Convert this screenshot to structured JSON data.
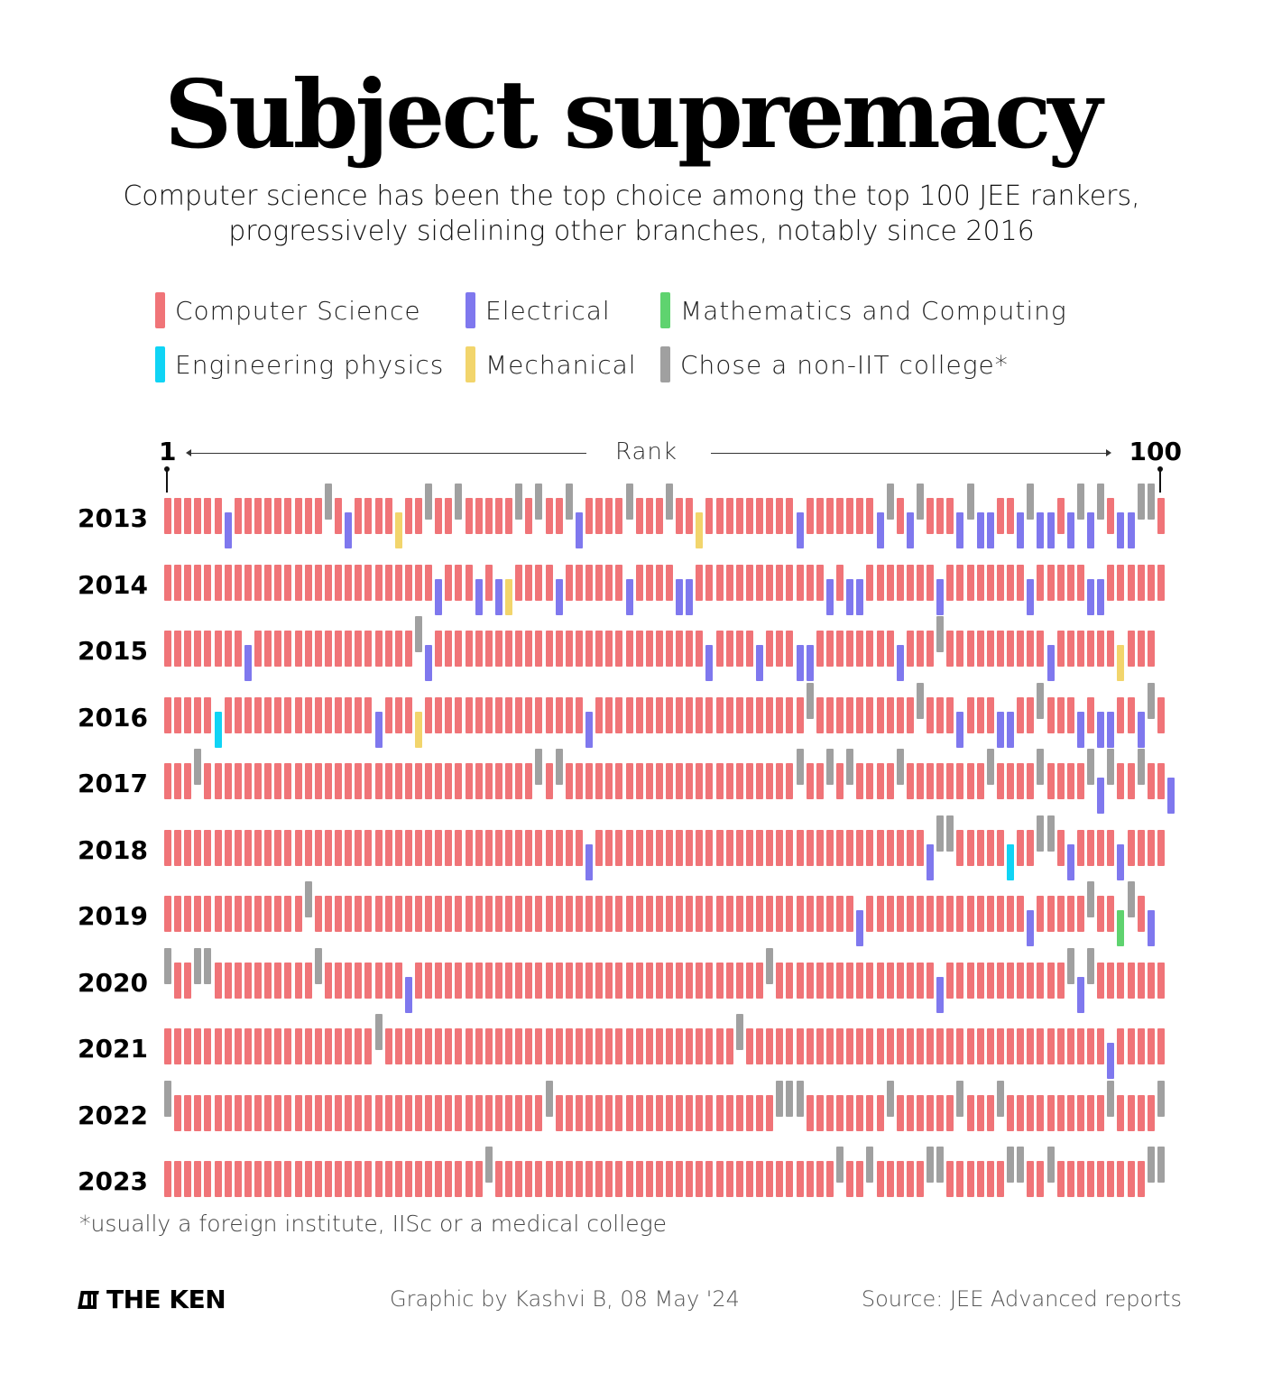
{
  "header": {
    "title": "Subject supremacy",
    "subtitle_line1": "Computer science has been the top choice among the top 100 JEE rankers,",
    "subtitle_line2": "progressively sidelining other branches, notably since 2016"
  },
  "legend": [
    {
      "code": "C",
      "label": "Computer Science",
      "color": "#f07478",
      "offset": "mid"
    },
    {
      "code": "E",
      "label": "Electrical",
      "color": "#7f78ee",
      "offset": "low"
    },
    {
      "code": "M",
      "label": "Mathematics and Computing",
      "color": "#5fd36f",
      "offset": "low"
    },
    {
      "code": "P",
      "label": "Engineering physics",
      "color": "#10d4f5",
      "offset": "low"
    },
    {
      "code": "Y",
      "label": "Mechanical",
      "color": "#f2d56c",
      "offset": "low"
    },
    {
      "code": "N",
      "label": "Chose a non-IIT college*",
      "color": "#a0a0a0",
      "offset": "high"
    }
  ],
  "axis": {
    "start_label": "1",
    "end_label": "100",
    "axis_title": "Rank"
  },
  "chart_data": {
    "type": "heatmap",
    "title": "Subject supremacy",
    "subtitle": "Computer science has been the top choice among the top 100 JEE rankers, progressively sidelining other branches, notably since 2016",
    "xlabel": "Rank",
    "x_range": [
      1,
      100
    ],
    "encoding": "Each row string has 100 characters, one per rank 1..100. C=Computer Science, E=Electrical, M=Mathematics and Computing, P=Engineering physics, Y=Mechanical (legend colour yellow), N=Chose a non-IIT college",
    "categories": {
      "C": "Computer Science",
      "E": "Electrical",
      "M": "Mathematics and Computing",
      "P": "Engineering physics",
      "Y": "Mechanical",
      "N": "Chose a non-IIT college*"
    },
    "rows": [
      {
        "year": "2013",
        "ranks": "CCCCCCECCCCCCCCCNCECCCCYCCNCCNCCCCCNCNCCNECCCCNCCCNCCYCCCCCCCCCECCCCCCCENCENCCCENEECCENEECENENCEENNC"
      },
      {
        "year": "2014",
        "ranks": "CCCCCCCCCCCCCCCCCCCCCCCCCCCECCCECEYCCCCECCCCCCECCCCEECCCCCCCCCCCCCECEECCCCCCCECCCCCCCCECCCCCEECCCCCC"
      },
      {
        "year": "2015",
        "ranks": "CCCCCCCCECCCCCCCCCCCCCCCCNECCCCCCCCCCCCCCCCCCCCCCCCCCCECCCCECCCEECCCCCCCCECCCNCCCCCCCCCCECCCCCCYCCC"
      },
      {
        "year": "2016",
        "ranks": "CCCCCPCCCCCCCCCCCCCCCECCCYCCCCCCCCCCCCCCCCECCCCCCCCCCCCCCCCCCCCCNCCCCCCCCCCNCCCECCCEECCNCCCECEECCENC"
      },
      {
        "year": "2017",
        "ranks": "CCCNCCCCCCCCCCCCCCCCCCCCCCCCCCCCCCCCCNCNCCCCCCCCCCCCCCCCCCCCCCCNCCNCNCCCCNCCCCCCCCNCCCCNCCCCNENCCNCCE"
      },
      {
        "year": "2018",
        "ranks": "CCCCCCCCCCCCCCCCCCCCCCCCCCCCCCCCCCCCCCCCCCECCCCCCCCCCCCCCCCCCCCCCCCCCCCCCCCCENNCCCCCPCCNNCECCCCECCCC"
      },
      {
        "year": "2019",
        "ranks": "CCCCCCCCCCCCCCNCCCCCCCCCCCCCCCCCCCCCCCCCCCCCCCCCCCCCCCCCCCCCCCCCCCCCCECCCCCCCCCCCCCCCCECCCCCNCCMNCE"
      },
      {
        "year": "2020",
        "ranks": "NCCNNCCCCCCCCCCNCCCCCCCCECCCCCCCCCCCCCCCCCCCCCCCCCCCCCCCCCCCNCCCCCCCCCCCCCCCCECCCCCCCCCCCCNENCCCCCCC"
      },
      {
        "year": "2021",
        "ranks": "CCCCCCCCCCCCCCCCCCCCCNCCCCCCCCCCCCCCCCCCCCCCCCCCCCCCCCCCCNCCCCCCCCCCCCCCCCCCCCCCCCCCCCCCCCCCCCECCCCC"
      },
      {
        "year": "2022",
        "ranks": "NCCCCCCCCCCCCCCCCCCCCCCCCCCCCCCCCCCCCCNCCCCCCCCCCCCCCCCCCCCCCNNNCCCCCCCCNCCCCCCNCCCNCCCCCCCCCCNCCCCN"
      },
      {
        "year": "2023",
        "ranks": "CCCCCCCCCCCCCCCCCCCCCCCCCCCCCCCCNCCCCCCCCCCCCCCCCCCCCCCCCCCCCCCCCCCNCCNCCCCCNNCCCCCCNNCCNCCCCCCCCCNN"
      }
    ]
  },
  "footnote": "*usually a foreign institute, IISc or a medical college",
  "footer": {
    "logo_text": "THE KEN",
    "credit": "Graphic by Kashvi B, 08 May '24",
    "source": "Source: JEE Advanced reports"
  }
}
